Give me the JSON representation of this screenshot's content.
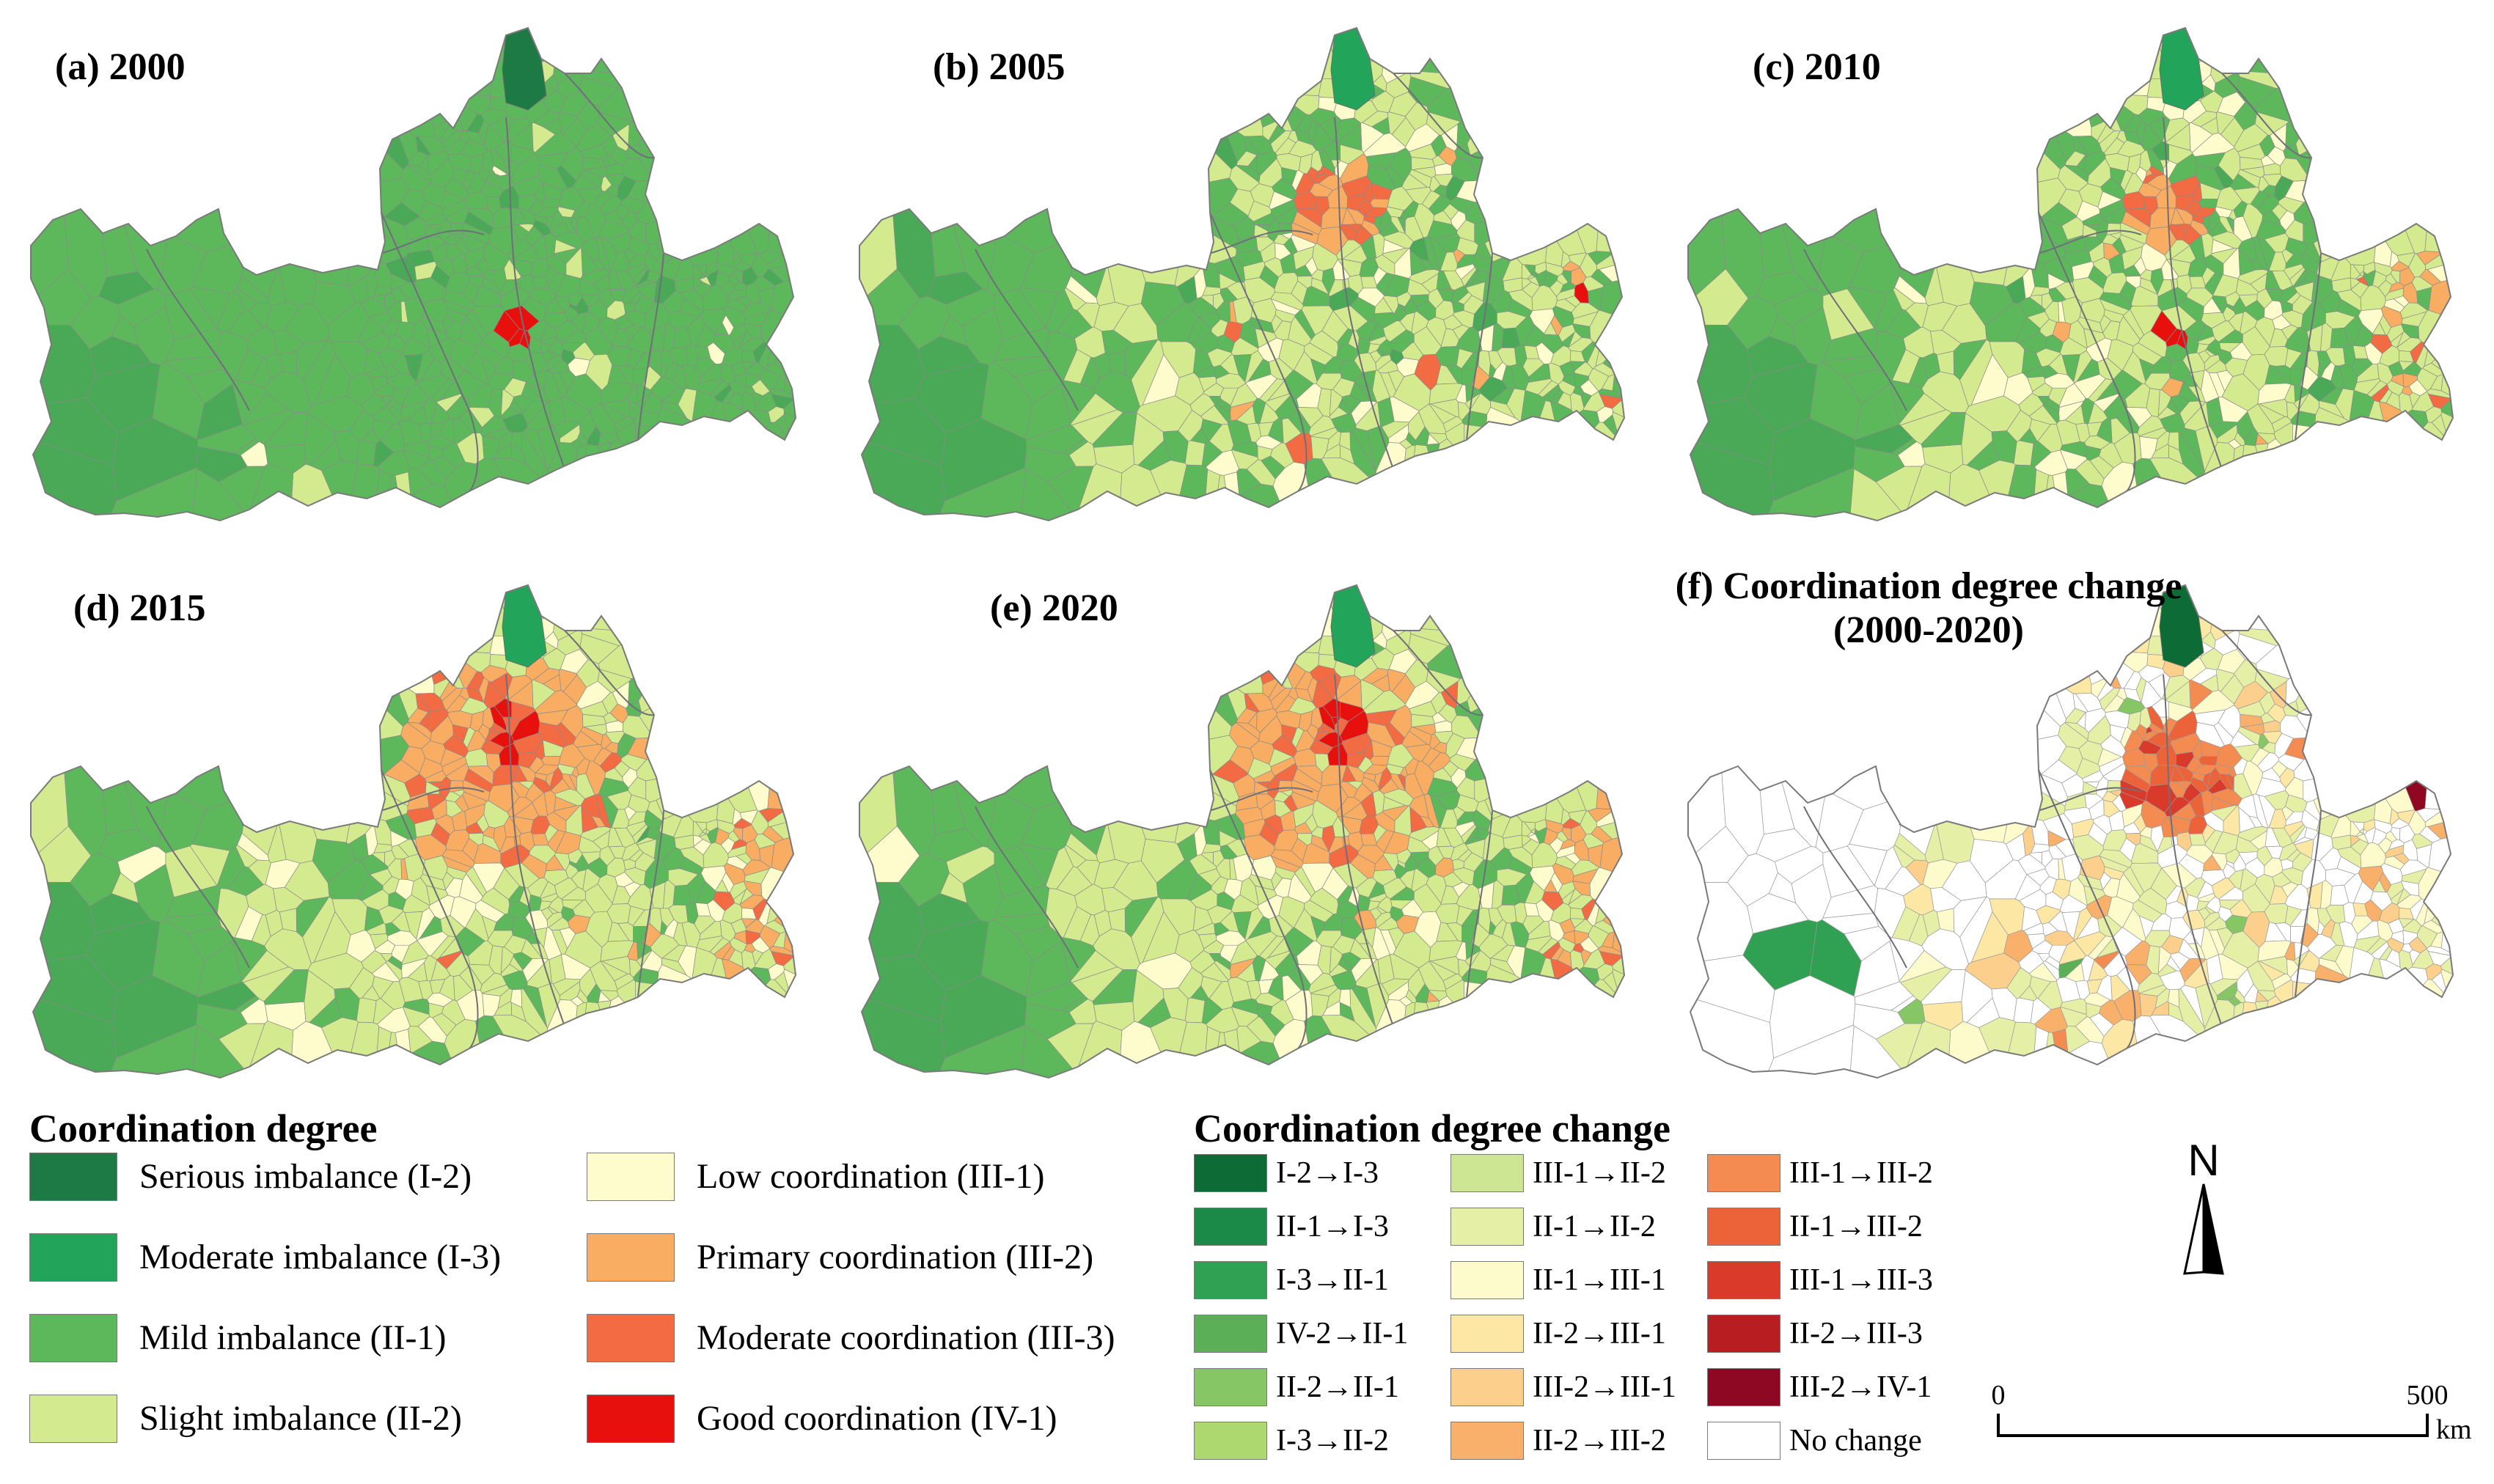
{
  "panels": [
    {
      "id": "a",
      "title": "(a) 2000"
    },
    {
      "id": "b",
      "title": "(b) 2005"
    },
    {
      "id": "c",
      "title": "(c) 2010"
    },
    {
      "id": "d",
      "title": "(d) 2015"
    },
    {
      "id": "e",
      "title": "(e) 2020"
    },
    {
      "id": "f",
      "title_line1": "(f) Coordination degree change",
      "title_line2": "(2000-2020)"
    }
  ],
  "legend_coordination": {
    "title": "Coordination degree",
    "items": [
      {
        "label": "Serious imbalance (I-2)",
        "color": "#1e7a45"
      },
      {
        "label": "Moderate imbalance (I-3)",
        "color": "#22a55a"
      },
      {
        "label": "Mild imbalance (II-1)",
        "color": "#5db85c"
      },
      {
        "label": "Slight imbalance (II-2)",
        "color": "#d4ea8f"
      },
      {
        "label": "Low coordination (III-1)",
        "color": "#fefccc"
      },
      {
        "label": "Primary coordination (III-2)",
        "color": "#f9ad62"
      },
      {
        "label": "Moderate coordination (III-3)",
        "color": "#f26b43"
      },
      {
        "label": "Good coordination (IV-1)",
        "color": "#e8100c"
      }
    ]
  },
  "legend_change": {
    "title": "Coordination degree change",
    "items": [
      {
        "label": "I-2→I-3",
        "color": "#0d6b36"
      },
      {
        "label": "II-1→I-3",
        "color": "#1b8a49"
      },
      {
        "label": "I-3→II-1",
        "color": "#30a052"
      },
      {
        "label": "IV-2→II-1",
        "color": "#5aaf57"
      },
      {
        "label": "II-2→II-1",
        "color": "#86c665"
      },
      {
        "label": "I-3→II-2",
        "color": "#acd86f"
      },
      {
        "label": "III-1→II-2",
        "color": "#cde694"
      },
      {
        "label": "II-1→II-2",
        "color": "#e5f0a6"
      },
      {
        "label": "II-1→III-1",
        "color": "#fdfbcb"
      },
      {
        "label": "II-2→III-1",
        "color": "#fde7a5"
      },
      {
        "label": "III-2→III-1",
        "color": "#fcd08c"
      },
      {
        "label": "II-2→III-2",
        "color": "#f8b06a"
      },
      {
        "label": "III-1→III-2",
        "color": "#f48b51"
      },
      {
        "label": "II-1→III-2",
        "color": "#ec6339"
      },
      {
        "label": "III-1→III-3",
        "color": "#d93a2a"
      },
      {
        "label": "II-2→III-3",
        "color": "#b81d22"
      },
      {
        "label": "III-2→IV-1",
        "color": "#8e0823"
      },
      {
        "label": "No change",
        "color": "#ffffff"
      }
    ]
  },
  "north_label": "N",
  "scale": {
    "start": "0",
    "end": "500",
    "unit": "km"
  }
}
